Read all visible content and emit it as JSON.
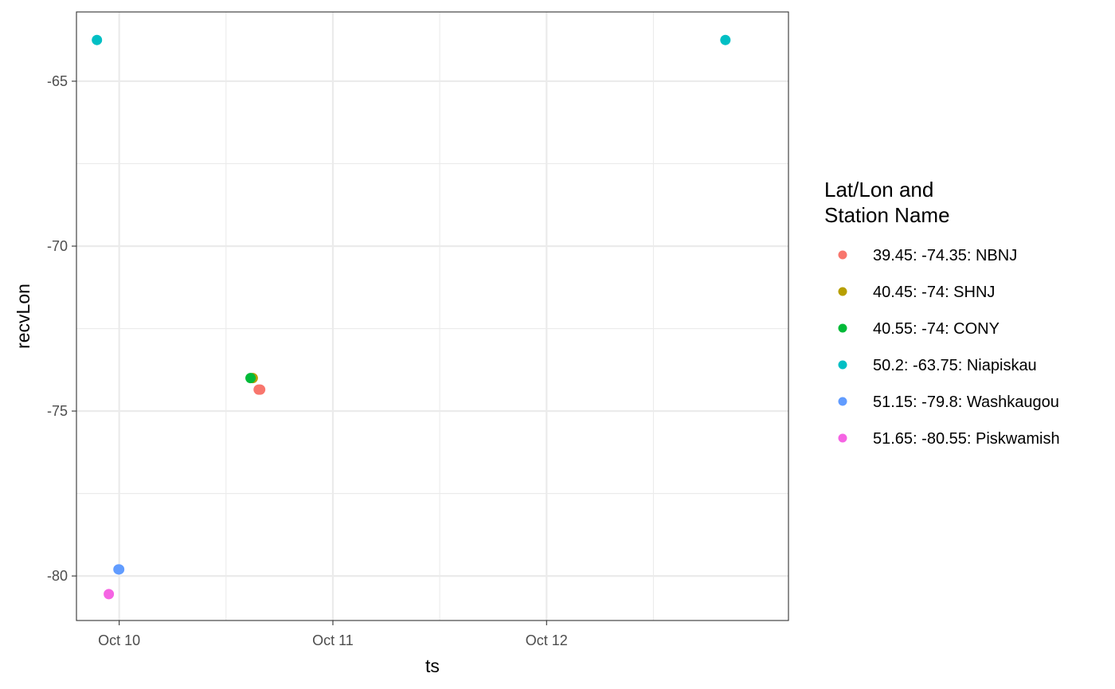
{
  "chart_data": {
    "type": "scatter",
    "title": "",
    "xlabel": "ts",
    "ylabel": "recvLon",
    "x_type": "date",
    "xlim": [
      "2023-10-09T19:12:00",
      "2023-10-13T03:10:00"
    ],
    "ylim": [
      -81.35,
      -62.9
    ],
    "x_ticks": [
      {
        "value": "2023-10-10T00:00:00",
        "label": "Oct 10"
      },
      {
        "value": "2023-10-11T00:00:00",
        "label": "Oct 11"
      },
      {
        "value": "2023-10-12T00:00:00",
        "label": "Oct 12"
      }
    ],
    "x_minor_ticks": [
      "2023-10-10T12:00:00",
      "2023-10-11T12:00:00",
      "2023-10-12T12:00:00"
    ],
    "y_ticks": [
      {
        "value": -65,
        "label": "-65"
      },
      {
        "value": -70,
        "label": "-70"
      },
      {
        "value": -75,
        "label": "-75"
      },
      {
        "value": -80,
        "label": "-80"
      }
    ],
    "y_minor_ticks": [
      -67.5,
      -72.5,
      -77.5
    ],
    "grid": true,
    "legend": {
      "title": [
        "Lat/Lon and",
        "Station Name"
      ],
      "position": "right"
    },
    "series": [
      {
        "name": "39.45: -74.35: NBNJ",
        "color": "#F8766D",
        "points": [
          {
            "x": "2023-10-10T15:50:00",
            "y": -74.35
          },
          {
            "x": "2023-10-10T15:40:00",
            "y": -74.35
          }
        ]
      },
      {
        "name": "40.45: -74: SHNJ",
        "color": "#B79F00",
        "points": [
          {
            "x": "2023-10-10T15:00:00",
            "y": -74
          }
        ]
      },
      {
        "name": "40.55: -74: CONY",
        "color": "#00BA38",
        "points": [
          {
            "x": "2023-10-10T14:45:00",
            "y": -74
          }
        ]
      },
      {
        "name": "50.2: -63.75: Niapiskau",
        "color": "#00BFC4",
        "points": [
          {
            "x": "2023-10-09T21:30:00",
            "y": -63.75
          },
          {
            "x": "2023-10-12T20:05:00",
            "y": -63.75
          }
        ]
      },
      {
        "name": "51.15: -79.8: Washkaugou",
        "color": "#619CFF",
        "points": [
          {
            "x": "2023-10-09T23:55:00",
            "y": -79.8
          },
          {
            "x": "2023-10-10T00:00:00",
            "y": -79.8
          }
        ]
      },
      {
        "name": "51.65: -80.55: Piskwamish",
        "color": "#F564E3",
        "points": [
          {
            "x": "2023-10-09T22:50:00",
            "y": -80.55
          }
        ]
      }
    ]
  }
}
